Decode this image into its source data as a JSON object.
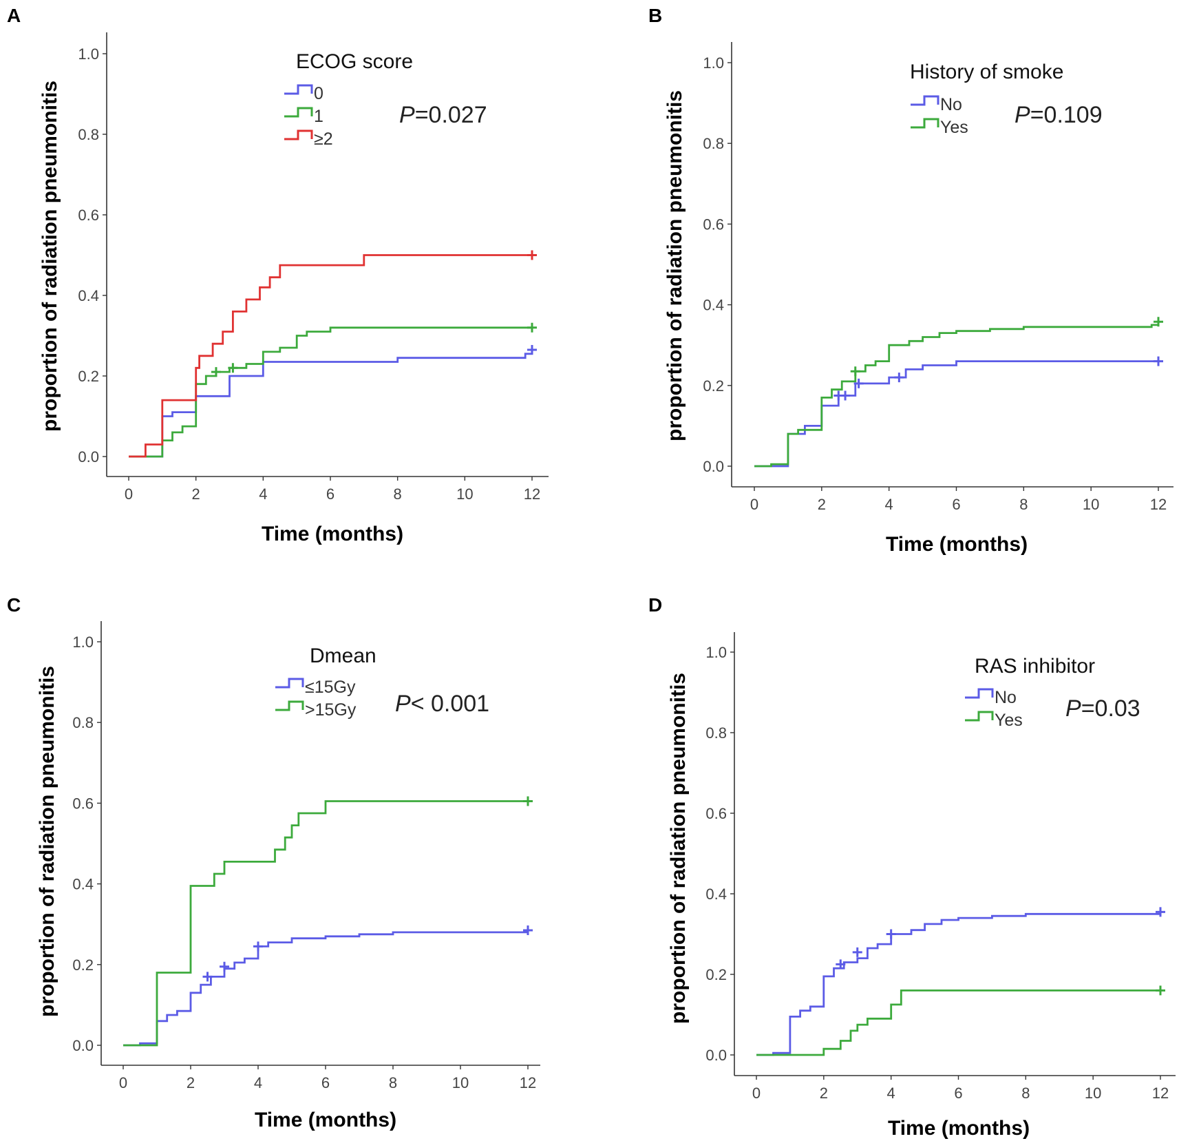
{
  "chart_data": [
    {
      "type": "line",
      "panel": "A",
      "title": "ECOG score",
      "xlabel": "Time (months)",
      "ylabel": "proportion of radiation pneumonitis",
      "xlim": [
        0,
        12
      ],
      "ylim": [
        0,
        1.0
      ],
      "xticks": [
        "0",
        "2",
        "4",
        "6",
        "8",
        "10",
        "12"
      ],
      "yticks": [
        "0.0",
        "0.2",
        "0.4",
        "0.6",
        "0.8",
        "1.0"
      ],
      "p_prefix": "P",
      "p_rest": "=0.027",
      "series": [
        {
          "name": "0",
          "color": "#5b5be6",
          "x": [
            0,
            0.9,
            1.0,
            1.3,
            2.0,
            3.0,
            4.0,
            8.0,
            11.8,
            12.0
          ],
          "y": [
            0,
            0,
            0.1,
            0.11,
            0.15,
            0.2,
            0.235,
            0.245,
            0.255,
            0.265
          ],
          "censor_x": [
            12.0
          ],
          "censor_y": [
            0.265
          ]
        },
        {
          "name": "1",
          "color": "#3caa3c",
          "x": [
            0,
            0.6,
            1.0,
            1.3,
            1.6,
            2.0,
            2.3,
            2.6,
            3.0,
            3.5,
            4.0,
            4.5,
            5.0,
            5.3,
            6.0,
            12.0
          ],
          "y": [
            0,
            0,
            0.04,
            0.06,
            0.075,
            0.18,
            0.2,
            0.21,
            0.22,
            0.23,
            0.26,
            0.27,
            0.3,
            0.31,
            0.32,
            0.32
          ],
          "censor_x": [
            2.6,
            3.1,
            12.0
          ],
          "censor_y": [
            0.21,
            0.22,
            0.32
          ]
        },
        {
          "name": "≥2",
          "color": "#e03232",
          "x": [
            0,
            0.5,
            1.0,
            2.0,
            2.1,
            2.5,
            2.8,
            3.1,
            3.5,
            3.9,
            4.2,
            4.5,
            7.0,
            12.0
          ],
          "y": [
            0,
            0.03,
            0.14,
            0.22,
            0.25,
            0.28,
            0.31,
            0.36,
            0.39,
            0.42,
            0.445,
            0.475,
            0.5,
            0.5
          ],
          "censor_x": [
            12.0
          ],
          "censor_y": [
            0.5
          ]
        }
      ]
    },
    {
      "type": "line",
      "panel": "B",
      "title": "History of smoke",
      "xlabel": "Time (months)",
      "ylabel": "proportion of radiation pneumonitis",
      "xlim": [
        0,
        12
      ],
      "ylim": [
        0,
        1.0
      ],
      "xticks": [
        "0",
        "2",
        "4",
        "6",
        "8",
        "10",
        "12"
      ],
      "yticks": [
        "0.0",
        "0.2",
        "0.4",
        "0.6",
        "0.8",
        "1.0"
      ],
      "p_prefix": "P",
      "p_rest": "=0.109",
      "series": [
        {
          "name": "No",
          "color": "#5b5be6",
          "x": [
            0,
            1.0,
            1.5,
            2.0,
            2.5,
            3.0,
            4.0,
            4.5,
            5.0,
            6.0,
            12.0
          ],
          "y": [
            0,
            0.08,
            0.1,
            0.15,
            0.175,
            0.205,
            0.22,
            0.24,
            0.25,
            0.26,
            0.26
          ],
          "censor_x": [
            2.5,
            2.7,
            3.1,
            4.3,
            12.0
          ],
          "censor_y": [
            0.175,
            0.175,
            0.205,
            0.22,
            0.26
          ]
        },
        {
          "name": "Yes",
          "color": "#3caa3c",
          "x": [
            0,
            0.5,
            1.0,
            1.3,
            2.0,
            2.3,
            2.6,
            3.0,
            3.3,
            3.6,
            4.0,
            4.6,
            5.0,
            5.5,
            6.0,
            7.0,
            8.0,
            11.8,
            12.0
          ],
          "y": [
            0,
            0.005,
            0.08,
            0.09,
            0.17,
            0.19,
            0.21,
            0.235,
            0.25,
            0.26,
            0.3,
            0.31,
            0.32,
            0.33,
            0.335,
            0.34,
            0.345,
            0.35,
            0.358
          ],
          "censor_x": [
            3.0,
            12.0
          ],
          "censor_y": [
            0.235,
            0.358
          ]
        }
      ]
    },
    {
      "type": "line",
      "panel": "C",
      "title": "Dmean",
      "xlabel": "Time (months)",
      "ylabel": "proportion of radiation pneumonitis",
      "xlim": [
        0,
        12
      ],
      "ylim": [
        0,
        1.0
      ],
      "xticks": [
        "0",
        "2",
        "4",
        "6",
        "8",
        "10",
        "12"
      ],
      "yticks": [
        "0.0",
        "0.2",
        "0.4",
        "0.6",
        "0.8",
        "1.0"
      ],
      "p_prefix": "P",
      "p_rest": "< 0.001",
      "series": [
        {
          "name": "≤15Gy",
          "color": "#5b5be6",
          "x": [
            0,
            0.5,
            1.0,
            1.3,
            1.6,
            2.0,
            2.3,
            2.6,
            3.0,
            3.3,
            3.6,
            4.0,
            4.3,
            5.0,
            6.0,
            7.0,
            8.0,
            12.0
          ],
          "y": [
            0,
            0.005,
            0.06,
            0.075,
            0.085,
            0.13,
            0.15,
            0.17,
            0.19,
            0.205,
            0.215,
            0.245,
            0.255,
            0.265,
            0.27,
            0.275,
            0.28,
            0.285
          ],
          "censor_x": [
            2.5,
            3.0,
            4.0,
            12.0
          ],
          "censor_y": [
            0.17,
            0.195,
            0.245,
            0.285
          ]
        },
        {
          "name": ">15Gy",
          "color": "#3caa3c",
          "x": [
            0,
            1.0,
            2.0,
            2.7,
            3.0,
            4.5,
            4.8,
            5.0,
            5.2,
            6.0,
            12.0
          ],
          "y": [
            0,
            0.18,
            0.395,
            0.425,
            0.455,
            0.485,
            0.515,
            0.545,
            0.575,
            0.605,
            0.605
          ],
          "censor_x": [
            12.0
          ],
          "censor_y": [
            0.605
          ]
        }
      ]
    },
    {
      "type": "line",
      "panel": "D",
      "title": "RAS inhibitor",
      "xlabel": "Time (months)",
      "ylabel": "proportion of radiation pneumonitis",
      "xlim": [
        0,
        12
      ],
      "ylim": [
        0,
        1.0
      ],
      "xticks": [
        "0",
        "2",
        "4",
        "6",
        "8",
        "10",
        "12"
      ],
      "yticks": [
        "0.0",
        "0.2",
        "0.4",
        "0.6",
        "0.8",
        "1.0"
      ],
      "p_prefix": "P",
      "p_rest": "=0.03",
      "series": [
        {
          "name": "No",
          "color": "#5b5be6",
          "x": [
            0,
            0.5,
            1.0,
            1.3,
            1.6,
            2.0,
            2.3,
            2.6,
            3.0,
            3.3,
            3.6,
            4.0,
            4.6,
            5.0,
            5.5,
            6.0,
            7.0,
            8.0,
            12.0
          ],
          "y": [
            0,
            0.005,
            0.095,
            0.11,
            0.12,
            0.195,
            0.215,
            0.23,
            0.24,
            0.265,
            0.275,
            0.3,
            0.31,
            0.325,
            0.335,
            0.34,
            0.345,
            0.35,
            0.355
          ],
          "censor_x": [
            2.5,
            3.0,
            4.0,
            12.0
          ],
          "censor_y": [
            0.225,
            0.255,
            0.3,
            0.355
          ]
        },
        {
          "name": "Yes",
          "color": "#3caa3c",
          "x": [
            0,
            2.0,
            2.5,
            2.8,
            3.0,
            3.3,
            4.0,
            4.3,
            12.0
          ],
          "y": [
            0,
            0.015,
            0.035,
            0.06,
            0.075,
            0.09,
            0.125,
            0.16,
            0.16
          ],
          "censor_x": [
            12.0
          ],
          "censor_y": [
            0.16
          ]
        }
      ]
    }
  ]
}
